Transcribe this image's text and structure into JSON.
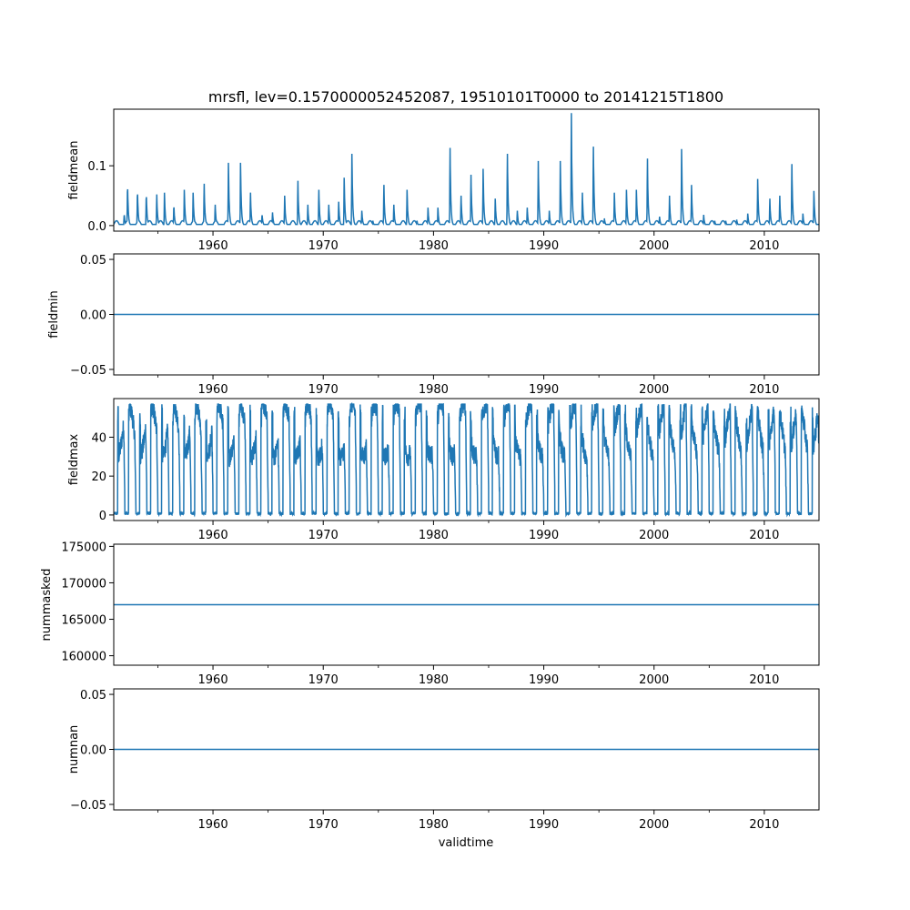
{
  "figure": {
    "title": "mrsfl, lev=0.1570000052452087, 19510101T0000 to 20141215T1800",
    "xlabel": "validtime"
  },
  "colors": {
    "line": "#1f77b4",
    "axes": "#000000",
    "background": "#ffffff"
  },
  "chart_data": [
    {
      "type": "line",
      "name": "fieldmean",
      "ylabel": "fieldmean",
      "xlim": [
        1951.0,
        2014.96
      ],
      "ylim": [
        -0.0093,
        0.1946
      ],
      "xticks": [
        1960,
        1970,
        1980,
        1990,
        2000,
        2010
      ],
      "xtick_labels": [
        "1960",
        "1970",
        "1980",
        "1990",
        "2000",
        "2010"
      ],
      "yticks": [
        0.0,
        0.1
      ],
      "ytick_labels": [
        "0.0",
        "0.1"
      ],
      "pattern": "seasonal-spikes",
      "base_value": 0.0,
      "peaks": [
        [
          1951.95,
          0.02
        ],
        [
          1952.25,
          0.07
        ],
        [
          1953.15,
          0.06
        ],
        [
          1953.95,
          0.055
        ],
        [
          1954.9,
          0.052
        ],
        [
          1955.6,
          0.055
        ],
        [
          1956.45,
          0.035
        ],
        [
          1957.4,
          0.06
        ],
        [
          1958.2,
          0.055
        ],
        [
          1959.2,
          0.07
        ],
        [
          1960.2,
          0.035
        ],
        [
          1961.4,
          0.105
        ],
        [
          1962.5,
          0.105
        ],
        [
          1963.4,
          0.055
        ],
        [
          1964.45,
          0.02
        ],
        [
          1965.4,
          0.022
        ],
        [
          1966.5,
          0.05
        ],
        [
          1967.7,
          0.075
        ],
        [
          1968.6,
          0.035
        ],
        [
          1969.6,
          0.06
        ],
        [
          1970.5,
          0.035
        ],
        [
          1971.4,
          0.04
        ],
        [
          1971.9,
          0.08
        ],
        [
          1972.6,
          0.12
        ],
        [
          1973.5,
          0.025
        ],
        [
          1974.5,
          0.008
        ],
        [
          1975.5,
          0.068
        ],
        [
          1976.4,
          0.035
        ],
        [
          1977.6,
          0.06
        ],
        [
          1978.5,
          0.008
        ],
        [
          1979.5,
          0.03
        ],
        [
          1980.4,
          0.03
        ],
        [
          1981.5,
          0.13
        ],
        [
          1982.5,
          0.05
        ],
        [
          1983.4,
          0.085
        ],
        [
          1984.5,
          0.095
        ],
        [
          1985.6,
          0.045
        ],
        [
          1986.7,
          0.12
        ],
        [
          1987.6,
          0.025
        ],
        [
          1988.5,
          0.03
        ],
        [
          1989.5,
          0.108
        ],
        [
          1990.5,
          0.025
        ],
        [
          1991.5,
          0.108
        ],
        [
          1992.5,
          0.188
        ],
        [
          1993.5,
          0.055
        ],
        [
          1994.5,
          0.132
        ],
        [
          1995.5,
          0.012
        ],
        [
          1996.4,
          0.055
        ],
        [
          1997.5,
          0.06
        ],
        [
          1998.4,
          0.06
        ],
        [
          1999.4,
          0.112
        ],
        [
          2000.5,
          0.015
        ],
        [
          2001.4,
          0.05
        ],
        [
          2002.5,
          0.128
        ],
        [
          2003.4,
          0.068
        ],
        [
          2004.5,
          0.018
        ],
        [
          2005.5,
          0.008
        ],
        [
          2006.5,
          0.008
        ],
        [
          2007.5,
          0.01
        ],
        [
          2008.5,
          0.02
        ],
        [
          2009.4,
          0.078
        ],
        [
          2010.5,
          0.045
        ],
        [
          2011.4,
          0.05
        ],
        [
          2012.5,
          0.103
        ],
        [
          2013.5,
          0.02
        ],
        [
          2014.5,
          0.058
        ]
      ]
    },
    {
      "type": "line",
      "name": "fieldmin",
      "ylabel": "fieldmin",
      "xlim": [
        1951.0,
        2014.96
      ],
      "ylim": [
        -0.055,
        0.055
      ],
      "xticks": [
        1960,
        1970,
        1980,
        1990,
        2000,
        2010
      ],
      "xtick_labels": [
        "1960",
        "1970",
        "1980",
        "1990",
        "2000",
        "2010"
      ],
      "yticks": [
        -0.05,
        0.0,
        0.05
      ],
      "ytick_labels": [
        "−0.05",
        "0.00",
        "0.05"
      ],
      "pattern": "constant",
      "value": 0.0
    },
    {
      "type": "line",
      "name": "fieldmax",
      "ylabel": "fieldmax",
      "xlim": [
        1951.0,
        2014.96
      ],
      "ylim": [
        -2.85,
        59.85
      ],
      "xticks": [
        1960,
        1970,
        1980,
        1990,
        2000,
        2010
      ],
      "xtick_labels": [
        "1960",
        "1970",
        "1980",
        "1990",
        "2000",
        "2010"
      ],
      "yticks": [
        0,
        20,
        40
      ],
      "ytick_labels": [
        "0",
        "20",
        "40"
      ],
      "pattern": "seasonal-square",
      "high_range": [
        30,
        57
      ],
      "low_value": 0
    },
    {
      "type": "line",
      "name": "nummasked",
      "ylabel": "nummasked",
      "xlim": [
        1951.0,
        2014.96
      ],
      "ylim": [
        158700,
        175300
      ],
      "xticks": [
        1960,
        1970,
        1980,
        1990,
        2000,
        2010
      ],
      "xtick_labels": [
        "1960",
        "1970",
        "1980",
        "1990",
        "2000",
        "2010"
      ],
      "yticks": [
        160000,
        165000,
        170000,
        175000
      ],
      "ytick_labels": [
        "160000",
        "165000",
        "170000",
        "175000"
      ],
      "pattern": "constant",
      "value": 167000
    },
    {
      "type": "line",
      "name": "numnan",
      "ylabel": "numnan",
      "xlim": [
        1951.0,
        2014.96
      ],
      "ylim": [
        -0.055,
        0.055
      ],
      "xticks": [
        1960,
        1970,
        1980,
        1990,
        2000,
        2010
      ],
      "xtick_labels": [
        "1960",
        "1970",
        "1980",
        "1990",
        "2000",
        "2010"
      ],
      "yticks": [
        -0.05,
        0.0,
        0.05
      ],
      "ytick_labels": [
        "−0.05",
        "0.00",
        "0.05"
      ],
      "pattern": "constant",
      "value": 0.0
    }
  ]
}
